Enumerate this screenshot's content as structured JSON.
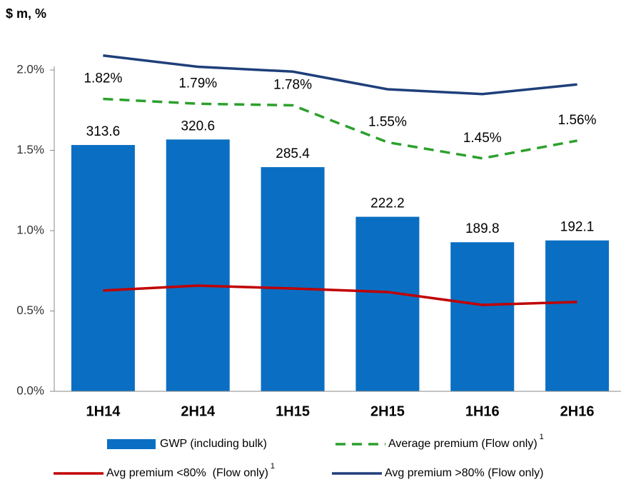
{
  "chart_data": {
    "type": "bar",
    "y_unit_label": "$ m, %",
    "categories": [
      "1H14",
      "2H14",
      "1H15",
      "2H15",
      "1H16",
      "2H16"
    ],
    "ylim": [
      0,
      2.2
    ],
    "yticks": [
      {
        "value": 0,
        "label": "0.0%"
      },
      {
        "value": 0.5,
        "label": "0.5%"
      },
      {
        "value": 1.0,
        "label": "1.0%"
      },
      {
        "value": 1.5,
        "label": "1.5%"
      },
      {
        "value": 2.0,
        "label": "2.0%"
      }
    ],
    "y2lim": [
      0,
      450
    ],
    "series": [
      {
        "name": "GWP (including bulk)",
        "type": "bar",
        "axis": "y2",
        "color": "#0a6fc2",
        "values": [
          313.6,
          320.6,
          285.4,
          222.2,
          189.8,
          192.1
        ]
      },
      {
        "name": "Average premium (Flow only)",
        "superscript": "1",
        "type": "line",
        "dashed": true,
        "color": "#2ca02c",
        "values": [
          1.82,
          1.79,
          1.78,
          1.55,
          1.45,
          1.56
        ],
        "value_labels": [
          "1.82%",
          "1.79%",
          "1.78%",
          "1.55%",
          "1.45%",
          "1.56%"
        ]
      },
      {
        "name": "Avg premium <80%  (Flow only)",
        "superscript": "1",
        "type": "line",
        "dashed": false,
        "color": "#c00000",
        "values": [
          0.627,
          0.658,
          0.64,
          0.618,
          0.538,
          0.556
        ]
      },
      {
        "name": "Avg premium >80% (Flow only)",
        "type": "line",
        "dashed": false,
        "color": "#1f3f7a",
        "values": [
          2.09,
          2.02,
          1.99,
          1.88,
          1.85,
          1.91
        ]
      }
    ]
  }
}
